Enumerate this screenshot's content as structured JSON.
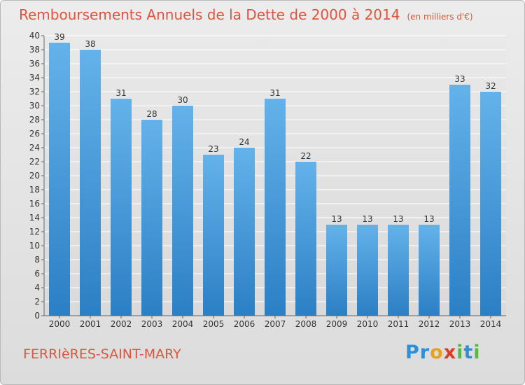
{
  "title": "Remboursements Annuels de la Dette de 2000 à 2014",
  "unit": "(en milliers d'€)",
  "town": "FERRIèRES-SAINT-MARY",
  "logo": {
    "letters": [
      {
        "ch": "P",
        "color": "#2e8fd6"
      },
      {
        "ch": "r",
        "color": "#2e8fd6"
      },
      {
        "ch": "o",
        "color": "#e8a020"
      },
      {
        "ch": "x",
        "color": "#de3b27"
      },
      {
        "ch": "i",
        "color": "#5ab54a"
      },
      {
        "ch": "t",
        "color": "#2e8fd6"
      },
      {
        "ch": "i",
        "color": "#5ab54a"
      }
    ]
  },
  "colors": {
    "title": "#e0533d",
    "bar_light": "#64b2ea",
    "bar_dark": "#2b7fc4",
    "grid": "#ffffff",
    "axis": "#666666"
  },
  "chart_data": {
    "type": "bar",
    "title": "Remboursements Annuels de la Dette de 2000 à 2014",
    "unit": "(en milliers d'€)",
    "categories": [
      "2000",
      "2001",
      "2002",
      "2003",
      "2004",
      "2005",
      "2006",
      "2007",
      "2008",
      "2009",
      "2010",
      "2011",
      "2012",
      "2013",
      "2014"
    ],
    "values": [
      39,
      38,
      31,
      28,
      30,
      23,
      24,
      31,
      22,
      13,
      13,
      13,
      13,
      33,
      32
    ],
    "ylim": [
      0,
      40
    ],
    "ytick_step": 2,
    "grid": true,
    "data_labels": true
  }
}
